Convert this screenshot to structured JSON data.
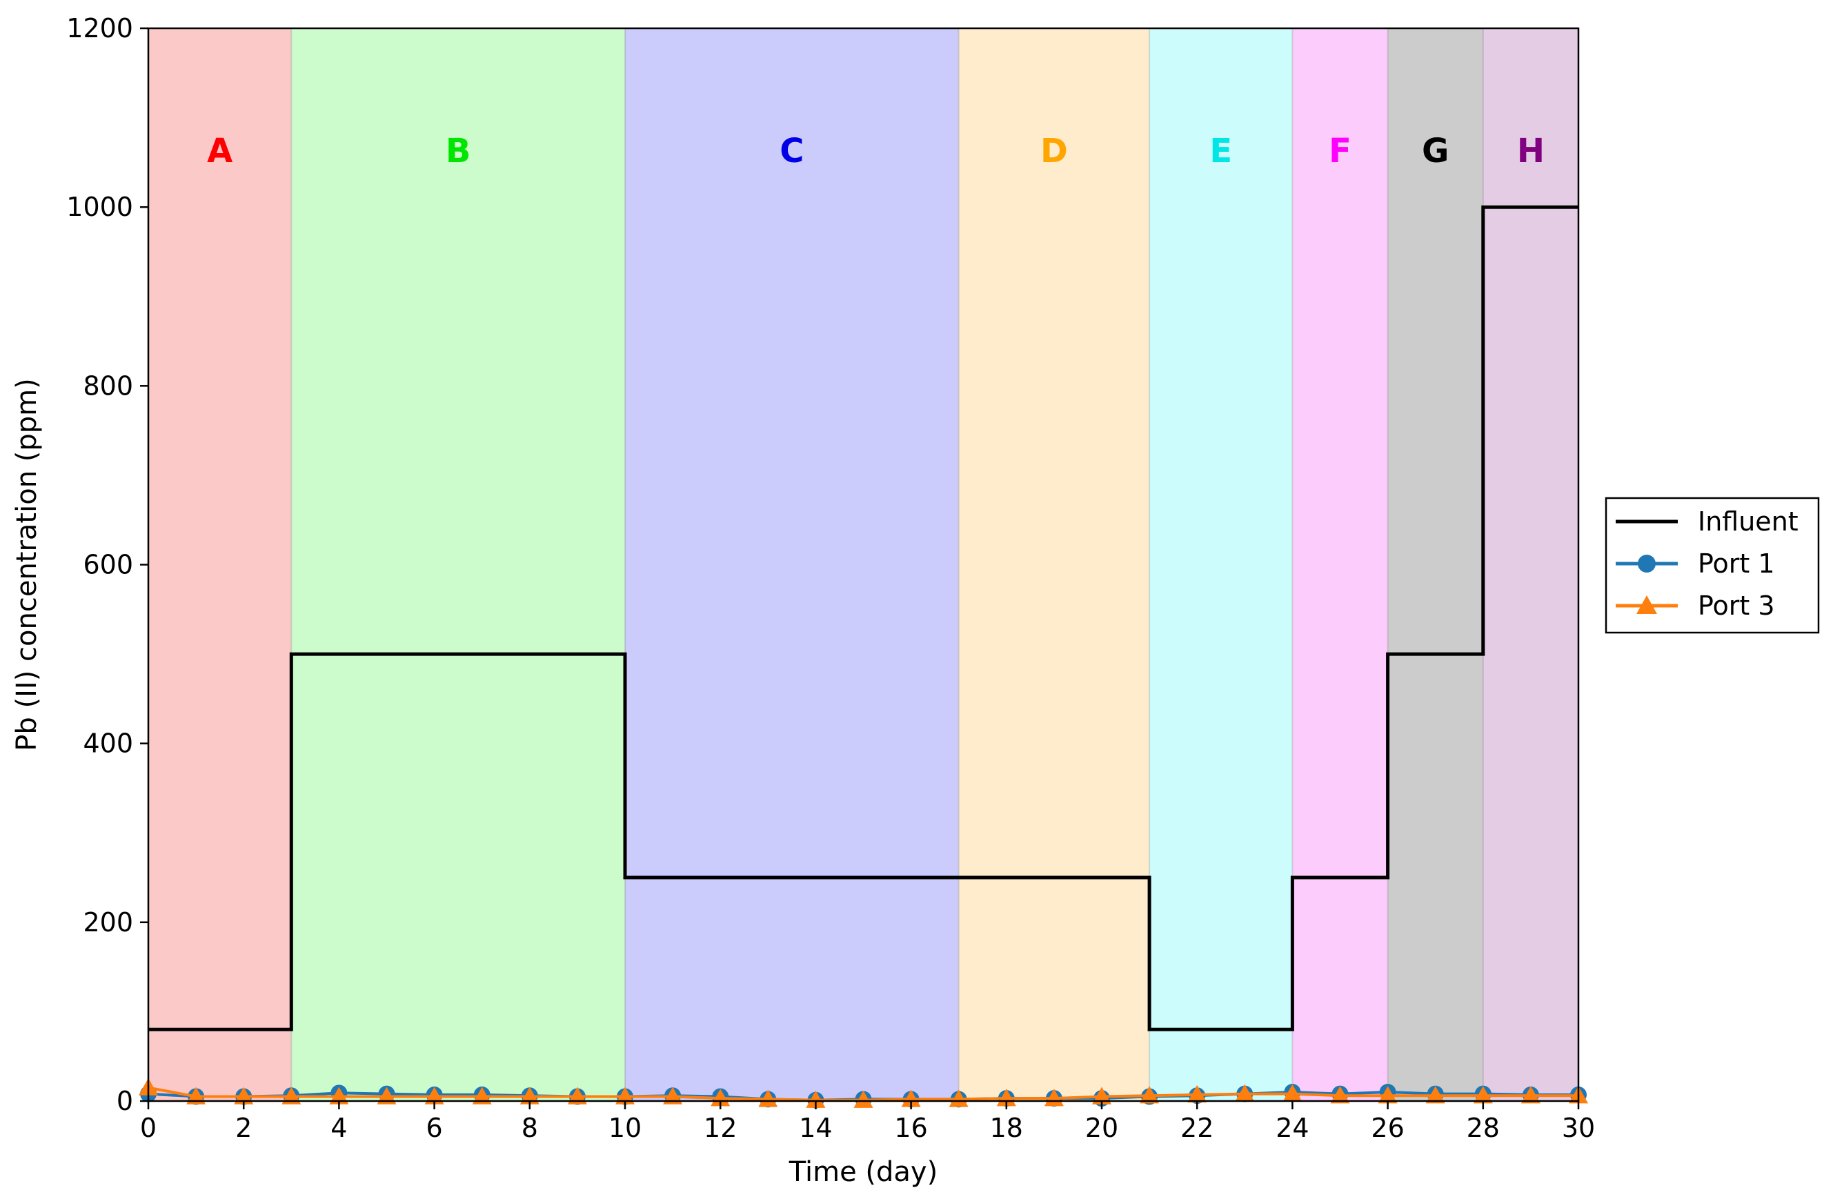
{
  "chart_data": {
    "type": "line",
    "xlabel": "Time (day)",
    "ylabel": "Pb (II) concentration (ppm)",
    "xlim": [
      0,
      30
    ],
    "ylim": [
      0,
      1200
    ],
    "xticks": [
      0,
      2,
      4,
      6,
      8,
      10,
      12,
      14,
      16,
      18,
      20,
      22,
      24,
      26,
      28,
      30
    ],
    "yticks": [
      0,
      200,
      400,
      600,
      800,
      1000,
      1200
    ],
    "grid": false,
    "legend_position": "outside-right",
    "phases": [
      {
        "label": "A",
        "start": 0,
        "end": 3,
        "fill": "#fcc9c9",
        "label_color": "#ff0000"
      },
      {
        "label": "B",
        "start": 3,
        "end": 10,
        "fill": "#ccfccc",
        "label_color": "#00e600"
      },
      {
        "label": "C",
        "start": 10,
        "end": 17,
        "fill": "#ccccfc",
        "label_color": "#0000e6"
      },
      {
        "label": "D",
        "start": 17,
        "end": 21,
        "fill": "#feeccc",
        "label_color": "#ffa500"
      },
      {
        "label": "E",
        "start": 21,
        "end": 24,
        "fill": "#ccfcfc",
        "label_color": "#00e6e6"
      },
      {
        "label": "F",
        "start": 24,
        "end": 26,
        "fill": "#fcccfc",
        "label_color": "#ff00ff"
      },
      {
        "label": "G",
        "start": 26,
        "end": 28,
        "fill": "#cccccc",
        "label_color": "#000000"
      },
      {
        "label": "H",
        "start": 28,
        "end": 30,
        "fill": "#e5cce5",
        "label_color": "#800080"
      }
    ],
    "series": [
      {
        "name": "Influent",
        "color": "#000000",
        "marker": "none",
        "style": "step",
        "points": [
          [
            0,
            80
          ],
          [
            3,
            80
          ],
          [
            3,
            500
          ],
          [
            10,
            500
          ],
          [
            10,
            250
          ],
          [
            21,
            250
          ],
          [
            21,
            80
          ],
          [
            24,
            80
          ],
          [
            24,
            250
          ],
          [
            26,
            250
          ],
          [
            26,
            500
          ],
          [
            28,
            500
          ],
          [
            28,
            1000
          ],
          [
            30,
            1000
          ]
        ]
      },
      {
        "name": "Port 1",
        "color": "#1f77b4",
        "marker": "circle",
        "style": "line",
        "x": [
          0,
          1,
          2,
          3,
          4,
          5,
          6,
          7,
          8,
          9,
          10,
          11,
          12,
          13,
          14,
          15,
          16,
          17,
          18,
          19,
          20,
          21,
          22,
          23,
          24,
          25,
          26,
          27,
          28,
          29,
          30
        ],
        "y": [
          8,
          5,
          5,
          6,
          9,
          8,
          7,
          7,
          6,
          5,
          5,
          6,
          5,
          2,
          1,
          2,
          2,
          2,
          3,
          3,
          3,
          5,
          6,
          8,
          10,
          8,
          10,
          8,
          8,
          7,
          7
        ]
      },
      {
        "name": "Port 3",
        "color": "#ff7f0e",
        "marker": "triangle",
        "style": "line",
        "x": [
          0,
          1,
          2,
          3,
          4,
          5,
          6,
          7,
          8,
          9,
          10,
          11,
          12,
          13,
          14,
          15,
          16,
          17,
          18,
          19,
          20,
          21,
          22,
          23,
          24,
          25,
          26,
          27,
          28,
          29,
          30
        ],
        "y": [
          15,
          5,
          5,
          5,
          5,
          5,
          5,
          5,
          5,
          5,
          5,
          5,
          3,
          2,
          1,
          1,
          2,
          2,
          3,
          3,
          5,
          6,
          7,
          8,
          8,
          6,
          6,
          6,
          6,
          6,
          6
        ]
      }
    ]
  }
}
